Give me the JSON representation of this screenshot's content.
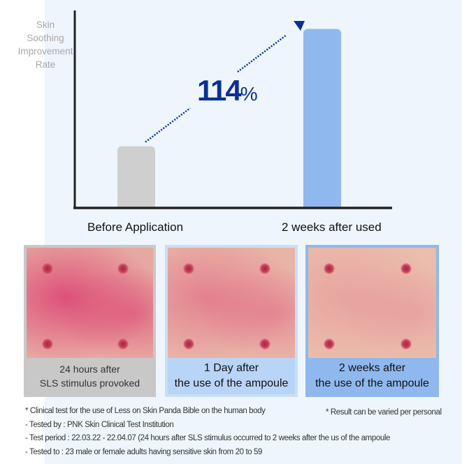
{
  "chart_data": {
    "type": "bar",
    "title": "",
    "ylabel": "Skin Soothing Improvement Rate",
    "categories": [
      "Before Application",
      "2 weeks after used"
    ],
    "values": [
      1.0,
      2.9
    ],
    "ylim": [
      0,
      3.2
    ],
    "grid": false,
    "colors": [
      "#cfcfcf",
      "#8fb8ef"
    ],
    "annotation": {
      "value": "114",
      "unit": "%",
      "color": "#0a2f9a"
    },
    "ylabel_lines": [
      "Skin",
      "Soothing",
      "Improvement",
      "Rate"
    ]
  },
  "photos": [
    {
      "caption": [
        "24 hours after",
        "SLS stimulus provoked"
      ],
      "redness": 0.85,
      "caption_bg": "#c8c8c8",
      "border": "#c8c8c8"
    },
    {
      "caption": [
        "1 Day after",
        "the use of the ampoule"
      ],
      "redness": 0.5,
      "caption_bg": "#b8d4f6",
      "border": "#c9def7"
    },
    {
      "caption": [
        "2 weeks after",
        "the use of the ampoule"
      ],
      "redness": 0.25,
      "caption_bg": "#8fb8ee",
      "border": "#8fb8ee"
    }
  ],
  "notes": [
    "* Clinical test for the use of Less on Skin Panda Bible on the human body",
    "- Tested by : PNK Skin Clinical Test Institution",
    "- Test period : 22.03.22 - 22.04.07 (24 hours after SLS stimulus occurred to 2 weeks after the us of the ampoule",
    "- Tested to : 23 male or female adults having sensitive skin from 20 to 59"
  ],
  "note_right": "* Result can be varied per personal"
}
